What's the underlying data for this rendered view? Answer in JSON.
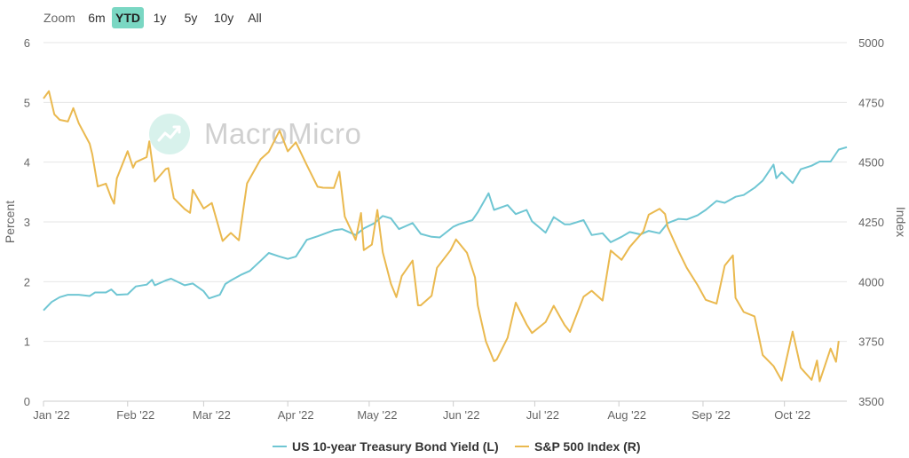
{
  "zoom": {
    "label": "Zoom",
    "buttons": [
      {
        "label": "6m",
        "active": false
      },
      {
        "label": "YTD",
        "active": true
      },
      {
        "label": "1y",
        "active": false
      },
      {
        "label": "5y",
        "active": false
      },
      {
        "label": "10y",
        "active": false
      },
      {
        "label": "All",
        "active": false
      }
    ]
  },
  "watermark": {
    "text": "MacroMicro"
  },
  "chart_data": {
    "type": "line",
    "title": "",
    "xlabel": "",
    "ylabel_left": "Percent",
    "ylabel_right": "Index",
    "xlim": [
      "2022-01-01",
      "2022-10-24"
    ],
    "ylim_left": [
      0,
      6
    ],
    "ylim_right": [
      3500,
      5000
    ],
    "y_ticks_left": [
      0,
      1,
      2,
      3,
      4,
      5,
      6
    ],
    "y_ticks_right": [
      3500,
      3750,
      4000,
      4250,
      4500,
      4750,
      5000
    ],
    "x_ticks": [
      {
        "date": "2022-01-01",
        "label": "Jan '22"
      },
      {
        "date": "2022-02-01",
        "label": "Feb '22"
      },
      {
        "date": "2022-03-01",
        "label": "Mar '22"
      },
      {
        "date": "2022-04-01",
        "label": "Apr '22"
      },
      {
        "date": "2022-05-01",
        "label": "May '22"
      },
      {
        "date": "2022-06-01",
        "label": "Jun '22"
      },
      {
        "date": "2022-07-01",
        "label": "Jul '22"
      },
      {
        "date": "2022-08-01",
        "label": "Aug '22"
      },
      {
        "date": "2022-09-01",
        "label": "Sep '22"
      },
      {
        "date": "2022-10-01",
        "label": "Oct '22"
      }
    ],
    "grid": true,
    "legend_position": "bottom",
    "series": [
      {
        "name": "US 10-year Treasury Bond Yield (L)",
        "axis": "left",
        "color": "#6fc6d3",
        "points": [
          [
            "2022-01-01",
            1.52
          ],
          [
            "2022-01-04",
            1.66
          ],
          [
            "2022-01-07",
            1.74
          ],
          [
            "2022-01-10",
            1.78
          ],
          [
            "2022-01-14",
            1.78
          ],
          [
            "2022-01-18",
            1.76
          ],
          [
            "2022-01-20",
            1.82
          ],
          [
            "2022-01-24",
            1.82
          ],
          [
            "2022-01-26",
            1.87
          ],
          [
            "2022-01-28",
            1.78
          ],
          [
            "2022-02-01",
            1.79
          ],
          [
            "2022-02-04",
            1.92
          ],
          [
            "2022-02-08",
            1.95
          ],
          [
            "2022-02-10",
            2.03
          ],
          [
            "2022-02-11",
            1.94
          ],
          [
            "2022-02-15",
            2.02
          ],
          [
            "2022-02-17",
            2.05
          ],
          [
            "2022-02-22",
            1.94
          ],
          [
            "2022-02-25",
            1.97
          ],
          [
            "2022-03-01",
            1.84
          ],
          [
            "2022-03-03",
            1.72
          ],
          [
            "2022-03-07",
            1.78
          ],
          [
            "2022-03-09",
            1.96
          ],
          [
            "2022-03-11",
            2.02
          ],
          [
            "2022-03-15",
            2.12
          ],
          [
            "2022-03-18",
            2.18
          ],
          [
            "2022-03-22",
            2.35
          ],
          [
            "2022-03-25",
            2.48
          ],
          [
            "2022-03-29",
            2.42
          ],
          [
            "2022-04-01",
            2.38
          ],
          [
            "2022-04-04",
            2.42
          ],
          [
            "2022-04-08",
            2.7
          ],
          [
            "2022-04-12",
            2.76
          ],
          [
            "2022-04-18",
            2.86
          ],
          [
            "2022-04-21",
            2.88
          ],
          [
            "2022-04-26",
            2.78
          ],
          [
            "2022-04-29",
            2.89
          ],
          [
            "2022-05-03",
            2.98
          ],
          [
            "2022-05-06",
            3.1
          ],
          [
            "2022-05-09",
            3.06
          ],
          [
            "2022-05-12",
            2.88
          ],
          [
            "2022-05-17",
            2.98
          ],
          [
            "2022-05-20",
            2.8
          ],
          [
            "2022-05-24",
            2.75
          ],
          [
            "2022-05-27",
            2.74
          ],
          [
            "2022-06-01",
            2.92
          ],
          [
            "2022-06-03",
            2.96
          ],
          [
            "2022-06-08",
            3.03
          ],
          [
            "2022-06-10",
            3.16
          ],
          [
            "2022-06-14",
            3.48
          ],
          [
            "2022-06-16",
            3.2
          ],
          [
            "2022-06-21",
            3.28
          ],
          [
            "2022-06-24",
            3.13
          ],
          [
            "2022-06-28",
            3.2
          ],
          [
            "2022-06-30",
            3.01
          ],
          [
            "2022-07-05",
            2.82
          ],
          [
            "2022-07-08",
            3.08
          ],
          [
            "2022-07-12",
            2.96
          ],
          [
            "2022-07-14",
            2.96
          ],
          [
            "2022-07-19",
            3.03
          ],
          [
            "2022-07-22",
            2.78
          ],
          [
            "2022-07-26",
            2.81
          ],
          [
            "2022-07-29",
            2.66
          ],
          [
            "2022-08-02",
            2.75
          ],
          [
            "2022-08-05",
            2.83
          ],
          [
            "2022-08-09",
            2.79
          ],
          [
            "2022-08-12",
            2.85
          ],
          [
            "2022-08-16",
            2.81
          ],
          [
            "2022-08-19",
            2.98
          ],
          [
            "2022-08-23",
            3.05
          ],
          [
            "2022-08-26",
            3.04
          ],
          [
            "2022-08-30",
            3.11
          ],
          [
            "2022-09-02",
            3.2
          ],
          [
            "2022-09-06",
            3.35
          ],
          [
            "2022-09-09",
            3.32
          ],
          [
            "2022-09-13",
            3.42
          ],
          [
            "2022-09-16",
            3.45
          ],
          [
            "2022-09-20",
            3.57
          ],
          [
            "2022-09-23",
            3.69
          ],
          [
            "2022-09-27",
            3.96
          ],
          [
            "2022-09-28",
            3.73
          ],
          [
            "2022-09-30",
            3.83
          ],
          [
            "2022-10-04",
            3.65
          ],
          [
            "2022-10-07",
            3.88
          ],
          [
            "2022-10-11",
            3.94
          ],
          [
            "2022-10-14",
            4.01
          ],
          [
            "2022-10-18",
            4.01
          ],
          [
            "2022-10-21",
            4.21
          ],
          [
            "2022-10-24",
            4.25
          ]
        ]
      },
      {
        "name": "S&P 500 Index (R)",
        "axis": "right",
        "color": "#eab94f",
        "points": [
          [
            "2022-01-01",
            4766
          ],
          [
            "2022-01-03",
            4797
          ],
          [
            "2022-01-05",
            4700
          ],
          [
            "2022-01-07",
            4677
          ],
          [
            "2022-01-10",
            4670
          ],
          [
            "2022-01-12",
            4726
          ],
          [
            "2022-01-14",
            4663
          ],
          [
            "2022-01-18",
            4577
          ],
          [
            "2022-01-19",
            4532
          ],
          [
            "2022-01-21",
            4398
          ],
          [
            "2022-01-24",
            4410
          ],
          [
            "2022-01-26",
            4350
          ],
          [
            "2022-01-27",
            4326
          ],
          [
            "2022-01-28",
            4432
          ],
          [
            "2022-02-01",
            4546
          ],
          [
            "2022-02-03",
            4477
          ],
          [
            "2022-02-04",
            4500
          ],
          [
            "2022-02-08",
            4521
          ],
          [
            "2022-02-09",
            4587
          ],
          [
            "2022-02-11",
            4419
          ],
          [
            "2022-02-15",
            4471
          ],
          [
            "2022-02-16",
            4475
          ],
          [
            "2022-02-18",
            4349
          ],
          [
            "2022-02-22",
            4304
          ],
          [
            "2022-02-24",
            4288
          ],
          [
            "2022-02-25",
            4384
          ],
          [
            "2022-03-01",
            4306
          ],
          [
            "2022-03-04",
            4329
          ],
          [
            "2022-03-08",
            4170
          ],
          [
            "2022-03-11",
            4204
          ],
          [
            "2022-03-14",
            4173
          ],
          [
            "2022-03-17",
            4411
          ],
          [
            "2022-03-22",
            4512
          ],
          [
            "2022-03-25",
            4543
          ],
          [
            "2022-03-29",
            4632
          ],
          [
            "2022-04-01",
            4545
          ],
          [
            "2022-04-04",
            4583
          ],
          [
            "2022-04-08",
            4488
          ],
          [
            "2022-04-12",
            4397
          ],
          [
            "2022-04-14",
            4393
          ],
          [
            "2022-04-18",
            4392
          ],
          [
            "2022-04-20",
            4460
          ],
          [
            "2022-04-22",
            4272
          ],
          [
            "2022-04-26",
            4175
          ],
          [
            "2022-04-28",
            4287
          ],
          [
            "2022-04-29",
            4132
          ],
          [
            "2022-05-02",
            4155
          ],
          [
            "2022-05-04",
            4300
          ],
          [
            "2022-05-06",
            4123
          ],
          [
            "2022-05-09",
            3991
          ],
          [
            "2022-05-11",
            3935
          ],
          [
            "2022-05-13",
            4024
          ],
          [
            "2022-05-17",
            4088
          ],
          [
            "2022-05-19",
            3901
          ],
          [
            "2022-05-20",
            3901
          ],
          [
            "2022-05-24",
            3941
          ],
          [
            "2022-05-26",
            4058
          ],
          [
            "2022-05-31",
            4132
          ],
          [
            "2022-06-02",
            4177
          ],
          [
            "2022-06-06",
            4121
          ],
          [
            "2022-06-09",
            4018
          ],
          [
            "2022-06-10",
            3901
          ],
          [
            "2022-06-13",
            3750
          ],
          [
            "2022-06-16",
            3667
          ],
          [
            "2022-06-17",
            3675
          ],
          [
            "2022-06-21",
            3765
          ],
          [
            "2022-06-24",
            3912
          ],
          [
            "2022-06-28",
            3821
          ],
          [
            "2022-06-30",
            3785
          ],
          [
            "2022-07-05",
            3831
          ],
          [
            "2022-07-08",
            3899
          ],
          [
            "2022-07-12",
            3819
          ],
          [
            "2022-07-14",
            3790
          ],
          [
            "2022-07-19",
            3937
          ],
          [
            "2022-07-22",
            3962
          ],
          [
            "2022-07-26",
            3921
          ],
          [
            "2022-07-29",
            4130
          ],
          [
            "2022-08-02",
            4091
          ],
          [
            "2022-08-05",
            4145
          ],
          [
            "2022-08-10",
            4210
          ],
          [
            "2022-08-12",
            4280
          ],
          [
            "2022-08-16",
            4305
          ],
          [
            "2022-08-18",
            4283
          ],
          [
            "2022-08-19",
            4228
          ],
          [
            "2022-08-23",
            4128
          ],
          [
            "2022-08-26",
            4058
          ],
          [
            "2022-08-30",
            3986
          ],
          [
            "2022-09-02",
            3924
          ],
          [
            "2022-09-06",
            3908
          ],
          [
            "2022-09-09",
            4067
          ],
          [
            "2022-09-12",
            4110
          ],
          [
            "2022-09-13",
            3932
          ],
          [
            "2022-09-16",
            3873
          ],
          [
            "2022-09-20",
            3855
          ],
          [
            "2022-09-23",
            3693
          ],
          [
            "2022-09-27",
            3647
          ],
          [
            "2022-09-30",
            3586
          ],
          [
            "2022-10-04",
            3791
          ],
          [
            "2022-10-07",
            3640
          ],
          [
            "2022-10-11",
            3589
          ],
          [
            "2022-10-13",
            3670
          ],
          [
            "2022-10-14",
            3583
          ],
          [
            "2022-10-18",
            3720
          ],
          [
            "2022-10-20",
            3665
          ],
          [
            "2022-10-21",
            3752
          ]
        ]
      }
    ]
  }
}
